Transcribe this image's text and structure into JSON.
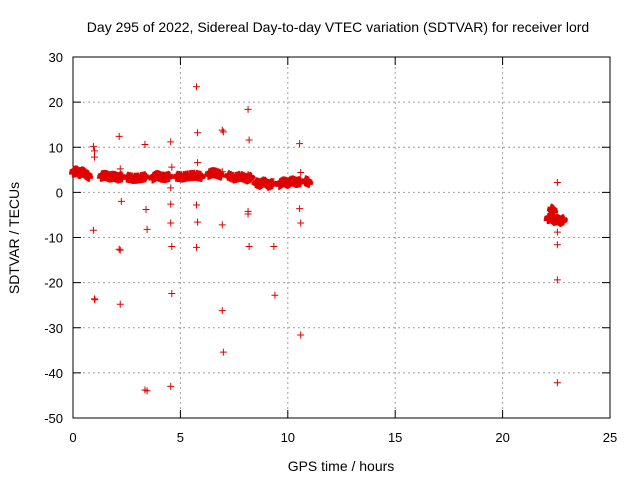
{
  "chart_data": {
    "type": "scatter",
    "title": "Day 295 of 2022, Sidereal Day-to-day VTEC variation (SDTVAR) for receiver lord",
    "xlabel": "GPS time / hours",
    "ylabel": "SDTVAR / TECUs",
    "xlim": [
      0,
      25
    ],
    "ylim": [
      -50,
      30
    ],
    "xticks": [
      0,
      5,
      10,
      15,
      20,
      25
    ],
    "yticks": [
      -50,
      -40,
      -30,
      -20,
      -10,
      0,
      10,
      20,
      30
    ],
    "grid": true,
    "marker": "+",
    "color": "#e00000",
    "dense_segments": [
      {
        "x": [
          0.0,
          0.15,
          0.3,
          0.45,
          0.6,
          0.75
        ],
        "y": [
          4.5,
          4.8,
          4.2,
          4.6,
          4.0,
          3.5
        ]
      },
      {
        "x": [
          1.3,
          1.5,
          1.7,
          1.9,
          2.1,
          2.3
        ],
        "y": [
          3.6,
          3.8,
          3.4,
          3.6,
          3.2,
          3.5
        ]
      },
      {
        "x": [
          2.5,
          2.8,
          3.1,
          3.4
        ],
        "y": [
          3.4,
          3.1,
          3.2,
          3.5
        ]
      },
      {
        "x": [
          3.7,
          3.9,
          4.1,
          4.3,
          4.5
        ],
        "y": [
          3.2,
          3.8,
          3.4,
          3.3,
          3.6
        ]
      },
      {
        "x": [
          4.8,
          5.1,
          5.4,
          5.7,
          6.0
        ],
        "y": [
          3.6,
          3.4,
          3.7,
          3.8,
          3.5
        ]
      },
      {
        "x": [
          6.3,
          6.5,
          6.7,
          6.9
        ],
        "y": [
          4.0,
          4.4,
          4.2,
          3.8
        ]
      },
      {
        "x": [
          7.2,
          7.5,
          7.8,
          8.1,
          8.3
        ],
        "y": [
          3.8,
          3.2,
          3.6,
          3.0,
          3.4
        ]
      },
      {
        "x": [
          8.5,
          8.7,
          8.9,
          9.1,
          9.3
        ],
        "y": [
          2.2,
          1.8,
          2.4,
          1.6,
          2.0
        ]
      },
      {
        "x": [
          9.6,
          9.8,
          10.0,
          10.2,
          10.4,
          10.6
        ],
        "y": [
          1.8,
          2.4,
          2.0,
          2.6,
          2.2,
          2.4
        ]
      },
      {
        "x": [
          10.8,
          11.0
        ],
        "y": [
          2.6,
          2.2
        ]
      },
      {
        "x": [
          22.1,
          22.25,
          22.4,
          22.55,
          22.7,
          22.85
        ],
        "y": [
          -5.8,
          -5.6,
          -6.2,
          -6.0,
          -6.4,
          -6.0
        ]
      },
      {
        "x": [
          22.25,
          22.4
        ],
        "y": [
          -3.6,
          -4.2
        ]
      }
    ],
    "points": {
      "x": [
        0.1,
        0.3,
        0.5,
        0.7,
        0.95,
        1.0,
        1.0,
        0.95,
        1.0,
        1.02,
        2.15,
        2.2,
        2.25,
        2.15,
        2.2,
        2.2,
        3.35,
        3.4,
        3.45,
        3.35,
        3.45,
        4.55,
        4.6,
        4.55,
        4.55,
        4.6,
        4.55,
        4.6,
        4.55,
        5.75,
        5.8,
        5.75,
        5.8,
        5.75,
        5.8,
        6.95,
        7.0,
        6.95,
        6.95,
        7.0,
        6.95,
        8.15,
        8.2,
        8.15,
        8.15,
        8.2,
        8.15,
        9.35,
        9.4,
        9.35,
        10.55,
        10.6,
        10.55,
        10.6,
        10.6,
        22.55,
        22.55,
        22.55,
        22.55,
        22.55
      ],
      "y": [
        4.0,
        4.8,
        4.4,
        3.6,
        10.2,
        9.2,
        7.8,
        -8.4,
        -23.6,
        -23.8,
        12.4,
        5.2,
        -2.0,
        -12.6,
        -12.8,
        -24.8,
        10.6,
        -3.8,
        -8.2,
        -43.8,
        -44.0,
        11.2,
        5.6,
        -2.6,
        -6.8,
        -22.4,
        -43.0,
        -12.0,
        1.0,
        23.4,
        13.2,
        -2.8,
        -6.6,
        -12.2,
        6.6,
        13.8,
        13.4,
        -7.2,
        -26.2,
        -35.4,
        4.6,
        18.4,
        11.6,
        -4.2,
        -4.8,
        -12.0,
        4.0,
        -12.0,
        -22.8,
        2.4,
        10.8,
        4.4,
        -3.6,
        -6.8,
        -31.6,
        2.2,
        -8.8,
        -11.6,
        -19.4,
        -42.2
      ]
    }
  }
}
